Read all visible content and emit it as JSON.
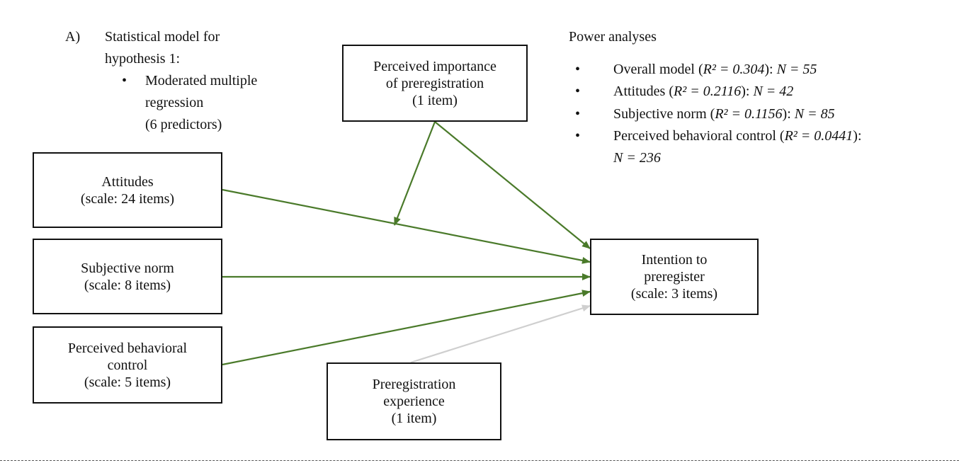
{
  "heading": {
    "label": "A)",
    "lines": [
      "Statistical model for",
      "hypothesis 1:"
    ],
    "bullet_lines": [
      "Moderated multiple",
      "regression",
      "(6 predictors)"
    ]
  },
  "power": {
    "title": "Power analyses",
    "items": [
      {
        "lead": "Overall model (",
        "r2": "R² = 0.304",
        "mid": "): ",
        "n": "N = 55",
        "wrap": ""
      },
      {
        "lead": "Attitudes (",
        "r2": "R² = 0.2116",
        "mid": "): ",
        "n": "N = 42",
        "wrap": ""
      },
      {
        "lead": "Subjective norm (",
        "r2": "R² = 0.1156",
        "mid": "): ",
        "n": "N = 85",
        "wrap": ""
      },
      {
        "lead": "Perceived behavioral control (",
        "r2": "R² = 0.0441",
        "mid": "):",
        "n": "",
        "wrap": "N = 236"
      }
    ]
  },
  "nodes": {
    "importance": {
      "lines": [
        "Perceived importance",
        "of preregistration",
        "(1 item)"
      ]
    },
    "attitudes": {
      "lines": [
        "Attitudes",
        "(scale: 24 items)"
      ]
    },
    "norm": {
      "lines": [
        "Subjective norm",
        "(scale: 8 items)"
      ]
    },
    "control": {
      "lines": [
        "Perceived behavioral",
        "control",
        "(scale: 5 items)"
      ]
    },
    "experience": {
      "lines": [
        "Preregistration",
        "experience",
        "(1 item)"
      ]
    },
    "intention": {
      "lines": [
        "Intention to",
        "preregister",
        "(scale: 3 items)"
      ]
    }
  },
  "colors": {
    "path": "#4a7a2a",
    "faint_path": "#cfcfcf"
  }
}
